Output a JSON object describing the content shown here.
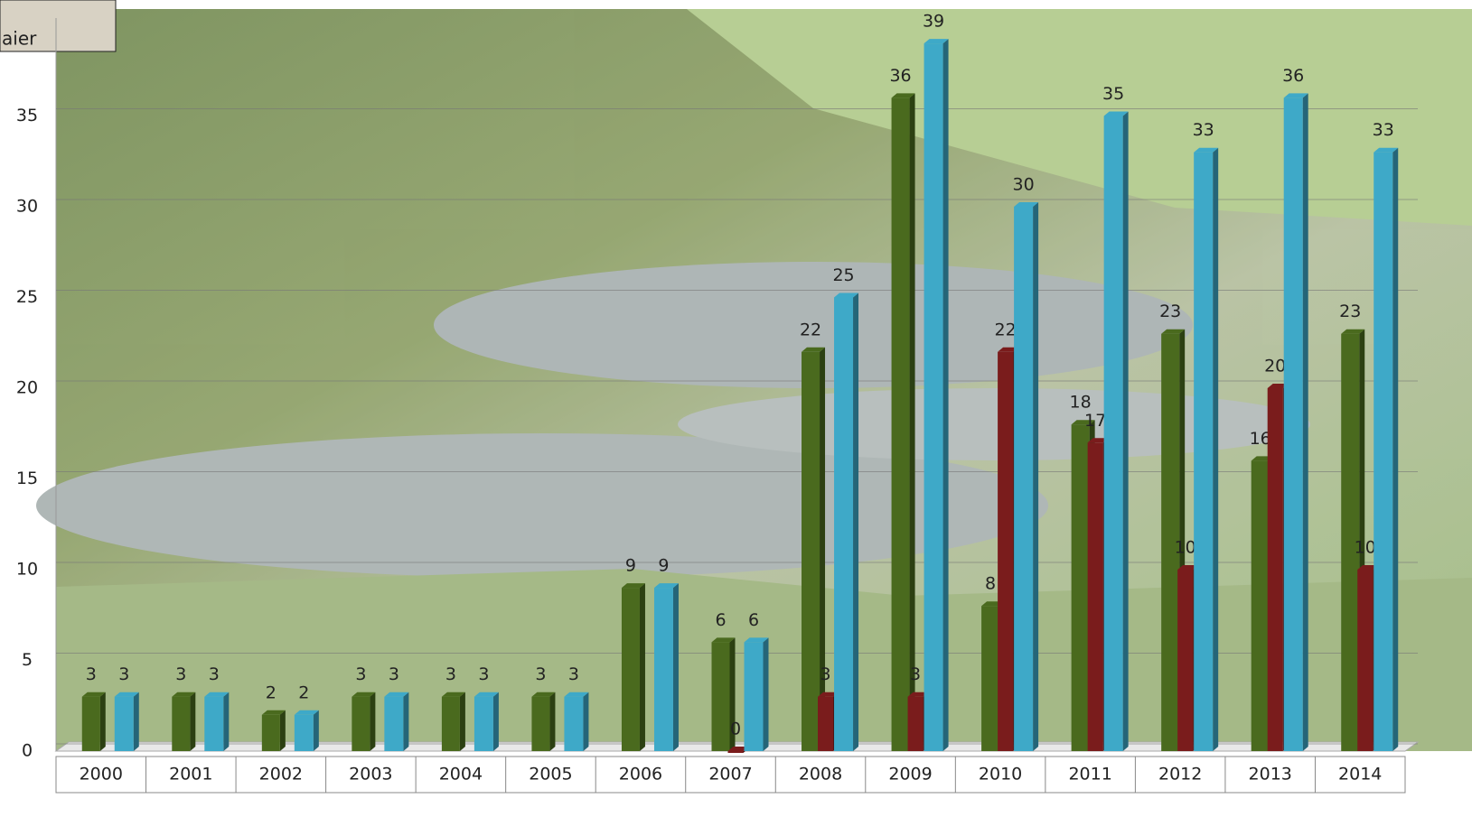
{
  "inset_caption": "aier",
  "chart_data": {
    "type": "bar",
    "categories": [
      "2000",
      "2001",
      "2002",
      "2003",
      "2004",
      "2005",
      "2006",
      "2007",
      "2008",
      "2009",
      "2010",
      "2011",
      "2012",
      "2013",
      "2014"
    ],
    "series": [
      {
        "color": "#4a6a1e",
        "values": [
          3,
          3,
          2,
          3,
          3,
          3,
          9,
          6,
          22,
          36,
          8,
          18,
          23,
          16,
          23
        ]
      },
      {
        "color": "#7a1c1c",
        "values": [
          null,
          null,
          null,
          null,
          null,
          null,
          null,
          0,
          3,
          3,
          22,
          17,
          10,
          20,
          10
        ]
      },
      {
        "color": "#3ea9c8",
        "values": [
          3,
          3,
          2,
          3,
          3,
          3,
          9,
          6,
          25,
          39,
          30,
          35,
          33,
          36,
          33
        ]
      }
    ],
    "ylim": [
      0,
      40
    ],
    "yticks": [
      0,
      5,
      10,
      15,
      20,
      25,
      30,
      35
    ],
    "grid": true
  }
}
